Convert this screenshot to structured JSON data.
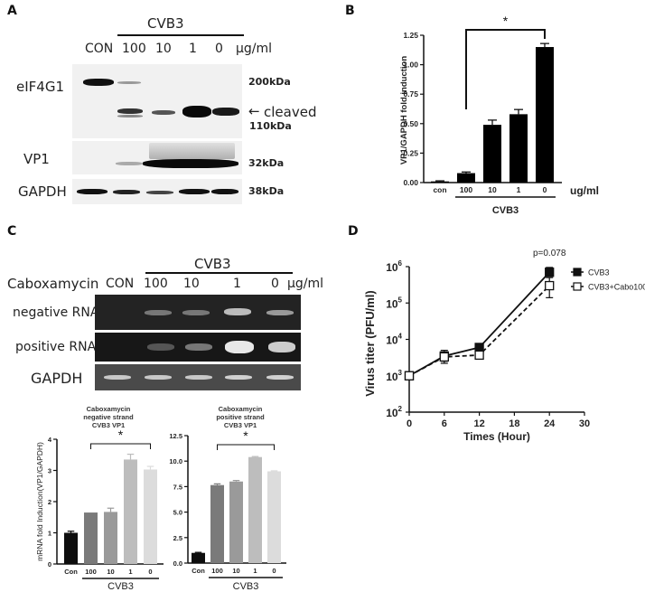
{
  "panels": {
    "A": {
      "label": "A",
      "treatment": "CVB3",
      "lanes": [
        "CON",
        "100",
        "10",
        "1",
        "0"
      ],
      "unit": "µg/ml",
      "rows": [
        {
          "name": "eIF4G1",
          "markers": [
            "200kDa",
            "110kDa"
          ],
          "annotation": "cleaved"
        },
        {
          "name": "VP1",
          "markers": [
            "32kDa"
          ]
        },
        {
          "name": "GAPDH",
          "markers": [
            "38kDa"
          ]
        }
      ],
      "arrow": "←"
    },
    "B": {
      "label": "B",
      "group_label": "CVB3",
      "unit": "ug/ml",
      "sig": "*"
    },
    "C": {
      "label": "C",
      "treatment": "CVB3",
      "drug": "Caboxamycin",
      "lanes": [
        "CON",
        "100",
        "10",
        "1",
        "0"
      ],
      "unit": "µg/ml",
      "rows": [
        "negative RNA",
        "positive RNA",
        "GAPDH"
      ],
      "left_chart_title": [
        "Caboxamycin",
        "negative strand",
        "CVB3 VP1"
      ],
      "right_chart_title": [
        "Caboxamycin",
        "positive strand",
        "CVB3 VP1"
      ],
      "group_label": "CVB3",
      "sig": "*"
    },
    "D": {
      "label": "D",
      "pvalue": "p=0.078"
    }
  },
  "chart_data": [
    {
      "panel": "B",
      "type": "bar",
      "title": "",
      "categories": [
        "con",
        "100",
        "10",
        "1",
        "0"
      ],
      "values": [
        0.01,
        0.08,
        0.49,
        0.58,
        1.15
      ],
      "errors": [
        0.005,
        0.01,
        0.04,
        0.04,
        0.03
      ],
      "xlabel": "CVB3 (ug/ml)",
      "ylabel": "VP1/GAPDH fold induction",
      "ylim": [
        0,
        1.25
      ],
      "yticks": [
        "0.00",
        "0.25",
        "0.50",
        "0.75",
        "1.00",
        "1.25"
      ],
      "annotations": [
        {
          "text": "*",
          "from": "100",
          "to": "0"
        }
      ],
      "bar_color": "#000000"
    },
    {
      "panel": "C-left",
      "type": "bar",
      "title": "Caboxamycin negative strand CVB3 VP1",
      "categories": [
        "Con",
        "100",
        "10",
        "1",
        "0"
      ],
      "values": [
        1.0,
        1.65,
        1.67,
        3.35,
        3.03
      ],
      "errors": [
        0.05,
        0.0,
        0.12,
        0.17,
        0.1
      ],
      "xlabel": "CVB3",
      "ylabel": "mRNA fold Induction(VP1/GAPDH)",
      "ylim": [
        0,
        4
      ],
      "yticks": [
        "0",
        "1",
        "2",
        "3",
        "4"
      ],
      "annotations": [
        {
          "text": "*",
          "from": "100",
          "to": "0"
        }
      ],
      "bar_colors": [
        "#0d0d0d",
        "#7a7a7a",
        "#9a9a9a",
        "#bdbdbd",
        "#dcdcdc"
      ]
    },
    {
      "panel": "C-right",
      "type": "bar",
      "title": "Caboxamycin positive strand CVB3 VP1",
      "categories": [
        "Con",
        "100",
        "10",
        "1",
        "0"
      ],
      "values": [
        1.0,
        7.65,
        8.0,
        10.4,
        9.0
      ],
      "errors": [
        0.05,
        0.12,
        0.1,
        0.05,
        0.05
      ],
      "xlabel": "CVB3",
      "ylabel": "",
      "ylim": [
        0,
        12.5
      ],
      "yticks": [
        "0.0",
        "2.5",
        "5.0",
        "7.5",
        "10.0",
        "12.5"
      ],
      "annotations": [
        {
          "text": "*",
          "from": "100",
          "to": "0"
        }
      ],
      "bar_colors": [
        "#0d0d0d",
        "#7a7a7a",
        "#9a9a9a",
        "#bdbdbd",
        "#dcdcdc"
      ]
    },
    {
      "panel": "D",
      "type": "line",
      "title": "",
      "x": [
        0,
        6,
        12,
        24
      ],
      "series": [
        {
          "name": "CVB3",
          "values": [
            1000,
            3500,
            6000,
            700000
          ],
          "err_hi": [
            1000,
            5000,
            7500,
            950000
          ],
          "err_lo": [
            1000,
            2500,
            4500,
            550000
          ],
          "marker": "filled-square",
          "line": "solid"
        },
        {
          "name": "CVB3+Cabo100",
          "values": [
            1000,
            3300,
            3700,
            300000
          ],
          "err_hi": [
            1000,
            4500,
            4500,
            500000
          ],
          "err_lo": [
            1000,
            2200,
            3100,
            140000
          ],
          "marker": "open-square",
          "line": "dashed"
        }
      ],
      "xlabel": "Times (Hour)",
      "ylabel": "Virus titer (PFU/ml)",
      "xlim": [
        0,
        30
      ],
      "xticks": [
        "0",
        "6",
        "12",
        "18",
        "24",
        "30"
      ],
      "ylim": [
        100,
        1000000
      ],
      "yscale": "log",
      "yticks": [
        "10^2",
        "10^3",
        "10^4",
        "10^5",
        "10^6"
      ],
      "annotations": [
        {
          "text": "p=0.078",
          "x": 24
        }
      ],
      "legend_position": "top-right"
    }
  ]
}
